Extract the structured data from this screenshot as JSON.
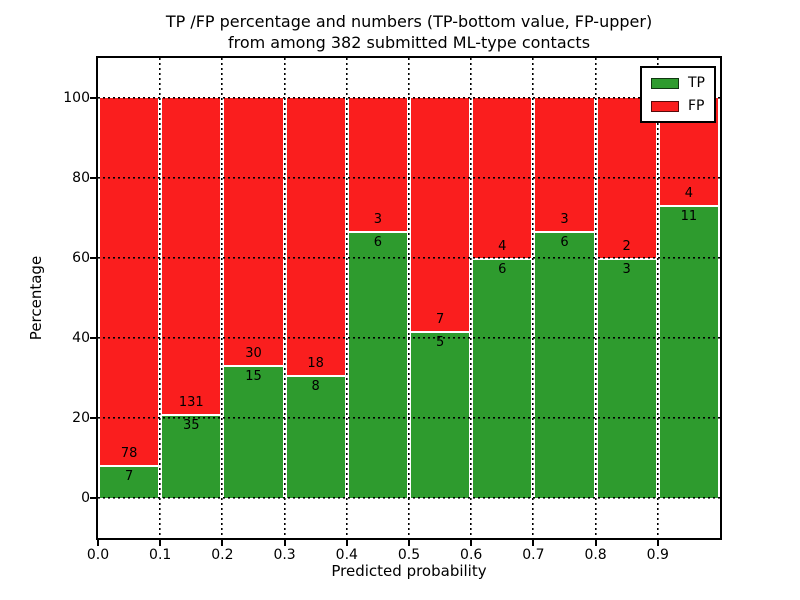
{
  "figure": {
    "title_line1": "TP /FP percentage and numbers (TP-bottom value, FP-upper)",
    "title_line2": "from among 382 submitted ML-type contacts"
  },
  "chart_data": {
    "type": "bar",
    "stacked": true,
    "percent_normalized": true,
    "title": "TP /FP percentage and numbers (TP-bottom value, FP-upper) from among 382 submitted ML-type contacts",
    "total_submitted": 382,
    "xlabel": "Predicted probability",
    "ylabel": "Percentage",
    "bin_width": 0.1,
    "bin_starts": [
      0.0,
      0.1,
      0.2,
      0.3,
      0.4,
      0.5,
      0.6,
      0.7,
      0.8,
      0.9
    ],
    "series": [
      {
        "name": "TP",
        "color": "#2e9b2e",
        "values": [
          7,
          35,
          15,
          8,
          6,
          5,
          6,
          6,
          3,
          11
        ]
      },
      {
        "name": "FP",
        "color": "#fa1e1e",
        "values": [
          78,
          131,
          30,
          18,
          3,
          7,
          4,
          3,
          2,
          4
        ]
      }
    ],
    "xlim": [
      0.0,
      1.0
    ],
    "ylim": [
      -10,
      110
    ],
    "xticks": {
      "values": [
        0.0,
        0.1,
        0.2,
        0.3,
        0.4,
        0.5,
        0.6,
        0.7,
        0.8,
        0.9
      ],
      "labels": [
        "0.0",
        "0.1",
        "0.2",
        "0.3",
        "0.4",
        "0.5",
        "0.6",
        "0.7",
        "0.8",
        "0.9"
      ]
    },
    "yticks": {
      "values": [
        0,
        20,
        40,
        60,
        80,
        100
      ],
      "labels": [
        "0",
        "20",
        "40",
        "60",
        "80",
        "100"
      ]
    },
    "grid": {
      "horizontal": [
        0,
        20,
        40,
        60,
        80,
        100
      ],
      "vertical": [
        0.1,
        0.2,
        0.3,
        0.4,
        0.5,
        0.6,
        0.7,
        0.8,
        0.9
      ],
      "style": "dotted",
      "color": "#000000"
    },
    "legend": {
      "position": "upper right",
      "entries": [
        {
          "label": "TP",
          "color": "#2e9b2e"
        },
        {
          "label": "FP",
          "color": "#fa1e1e"
        }
      ]
    },
    "colors": {
      "tp": "#2e9b2e",
      "fp": "#fa1e1e",
      "background": "#ffffff",
      "axes": "#000000",
      "bar_edge": "#ffffff"
    }
  }
}
